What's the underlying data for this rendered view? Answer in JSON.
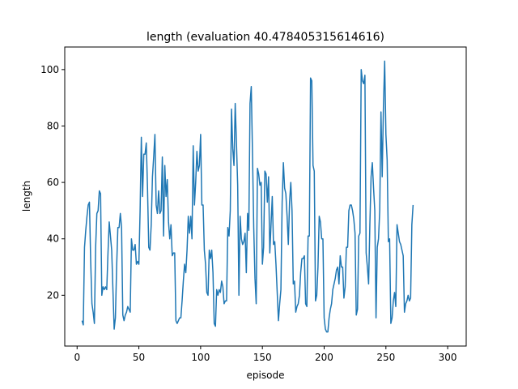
{
  "chart_data": {
    "type": "line",
    "title": "length (evaluation 40.478405315614616)",
    "xlabel": "episode",
    "ylabel": "length",
    "xlim": [
      -10,
      315
    ],
    "ylim": [
      2,
      108
    ],
    "x_ticks": [
      0,
      50,
      100,
      150,
      200,
      250,
      300
    ],
    "y_ticks": [
      20,
      40,
      60,
      80,
      100
    ],
    "grid": false,
    "color": "#1f77b4",
    "series": [
      {
        "x_start": 4,
        "x_step": 1,
        "values": [
          11,
          9.5,
          37,
          43,
          48,
          52,
          53,
          32,
          17,
          14,
          10,
          37,
          49,
          50,
          57,
          56,
          20,
          23,
          22,
          23,
          22,
          35,
          46,
          41,
          36,
          22,
          8,
          12,
          30,
          44,
          44,
          49,
          44,
          13,
          11,
          13,
          14,
          16,
          15,
          14,
          40,
          36,
          36,
          38,
          31,
          32,
          31,
          50,
          76,
          55,
          70,
          70,
          74,
          58,
          37,
          36,
          45,
          62,
          69,
          77,
          52,
          49,
          57,
          49,
          50,
          69,
          41,
          66,
          55,
          61,
          46,
          40,
          45,
          34,
          35,
          35,
          11,
          10,
          11,
          12,
          12,
          18,
          25,
          31,
          28,
          36,
          48,
          42,
          48,
          40,
          73,
          52,
          60,
          71,
          64,
          66,
          77,
          52,
          52,
          36,
          31,
          21,
          20,
          36,
          33,
          36,
          28,
          10,
          9,
          22,
          20,
          22,
          21,
          25,
          23,
          17,
          18,
          18,
          44,
          41,
          50,
          86,
          72,
          66,
          88,
          74,
          59,
          20,
          48,
          40,
          38,
          39,
          42,
          28,
          49,
          43,
          88,
          94,
          70,
          44,
          26,
          17,
          65,
          63,
          59,
          60,
          31,
          37,
          64,
          63,
          53,
          62,
          35,
          45,
          55,
          38,
          39,
          31,
          21,
          11,
          17,
          22,
          53,
          67,
          58,
          56,
          48,
          38,
          53,
          60,
          50,
          24,
          25,
          14,
          16,
          17,
          20,
          28,
          33,
          33,
          34,
          17,
          16,
          41,
          41,
          97,
          96,
          66,
          64,
          18,
          20,
          30,
          48,
          46,
          40,
          40,
          12,
          8,
          7,
          7,
          12,
          15,
          17,
          22,
          24,
          26,
          29,
          30,
          24,
          34,
          30,
          30,
          19,
          23,
          37,
          37,
          50,
          52,
          52,
          50,
          47,
          42,
          13,
          15,
          41,
          42,
          100,
          96,
          95,
          98,
          35,
          30,
          24,
          45,
          62,
          67,
          58,
          50,
          12,
          37,
          40,
          50,
          85,
          62,
          87,
          103,
          77,
          68,
          39,
          40,
          10,
          12,
          18,
          21,
          16,
          45,
          42,
          39,
          38,
          36,
          34,
          14,
          17,
          18,
          20,
          18,
          19,
          45,
          52
        ]
      }
    ]
  }
}
